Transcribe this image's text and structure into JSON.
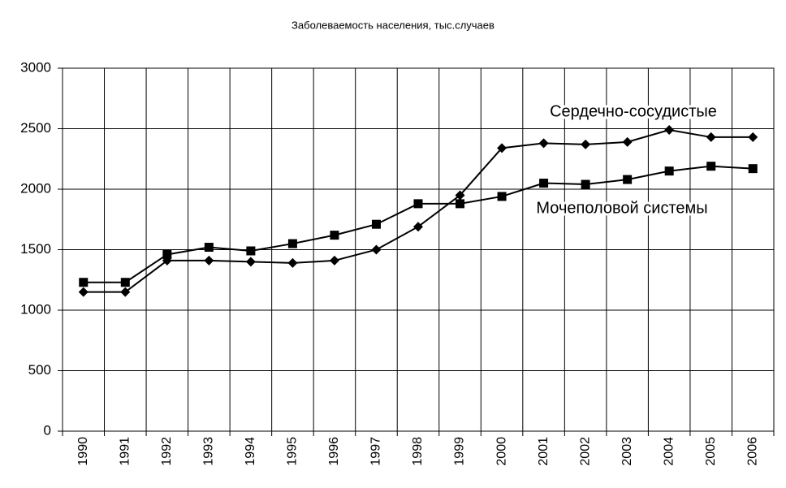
{
  "chart_data": {
    "type": "line",
    "title": "Заболеваемость населения, тыс.случаев",
    "categories": [
      "1990",
      "1991",
      "1992",
      "1993",
      "1994",
      "1995",
      "1996",
      "1997",
      "1998",
      "1999",
      "2000",
      "2001",
      "2002",
      "2003",
      "2004",
      "2005",
      "2006"
    ],
    "series": [
      {
        "name": "Сердечно-сосудистые",
        "color": "#000000",
        "marker": "diamond",
        "values": [
          1150,
          1150,
          1410,
          1410,
          1400,
          1390,
          1410,
          1500,
          1690,
          1950,
          2340,
          2380,
          2370,
          2390,
          2490,
          2430,
          2430
        ]
      },
      {
        "name": "Мочеполовой системы",
        "color": "#000000",
        "marker": "square",
        "values": [
          1230,
          1230,
          1460,
          1520,
          1490,
          1550,
          1620,
          1710,
          1880,
          1880,
          1940,
          2050,
          2040,
          2080,
          2150,
          2190,
          2170
        ]
      }
    ],
    "ylim": [
      0,
      3000
    ],
    "yticks": [
      0,
      500,
      1000,
      1500,
      2000,
      2500,
      3000
    ],
    "grid": true
  }
}
